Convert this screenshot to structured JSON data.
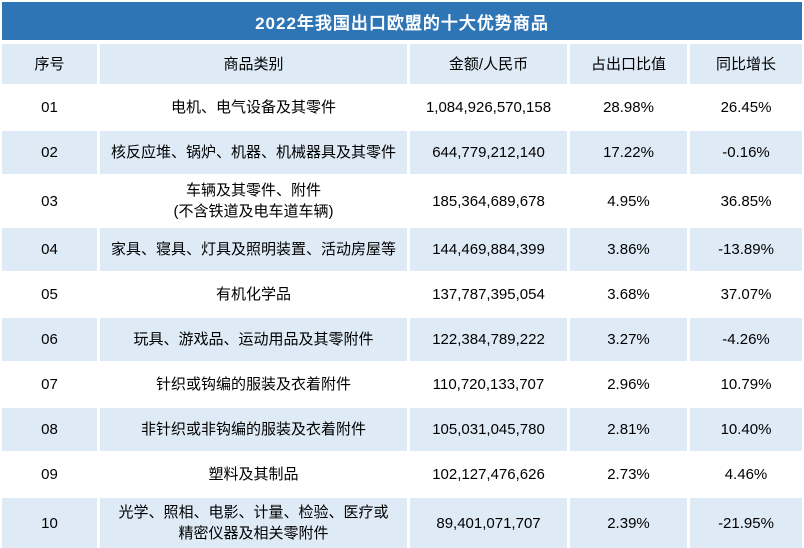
{
  "colors": {
    "title_bar": "#2E75B6",
    "title_text": "#FFFFFF",
    "row_alt": "#DEEAF6",
    "text": "#000000"
  },
  "chart_data": {
    "type": "table",
    "title": "2022年我国出口欧盟的十大优势商品",
    "columns": [
      "序号",
      "商品类别",
      "金额/人民币",
      "占出口比值",
      "同比增长"
    ],
    "rows": [
      {
        "no": "01",
        "category_lines": [
          "电机、电气设备及其零件"
        ],
        "amount": "1,084,926,570,158",
        "share": "28.98%",
        "growth": "26.45%"
      },
      {
        "no": "02",
        "category_lines": [
          "核反应堆、锅炉、机器、机械器具及其零件"
        ],
        "amount": "644,779,212,140",
        "share": "17.22%",
        "growth": "-0.16%"
      },
      {
        "no": "03",
        "category_lines": [
          "车辆及其零件、附件",
          "(不含铁道及电车道车辆)"
        ],
        "amount": "185,364,689,678",
        "share": "4.95%",
        "growth": "36.85%"
      },
      {
        "no": "04",
        "category_lines": [
          "家具、寝具、灯具及照明装置、活动房屋等"
        ],
        "amount": "144,469,884,399",
        "share": "3.86%",
        "growth": "-13.89%"
      },
      {
        "no": "05",
        "category_lines": [
          "有机化学品"
        ],
        "amount": "137,787,395,054",
        "share": "3.68%",
        "growth": "37.07%"
      },
      {
        "no": "06",
        "category_lines": [
          "玩具、游戏品、运动用品及其零附件"
        ],
        "amount": "122,384,789,222",
        "share": "3.27%",
        "growth": "-4.26%"
      },
      {
        "no": "07",
        "category_lines": [
          "针织或钩编的服装及衣着附件"
        ],
        "amount": "110,720,133,707",
        "share": "2.96%",
        "growth": "10.79%"
      },
      {
        "no": "08",
        "category_lines": [
          "非针织或非钩编的服装及衣着附件"
        ],
        "amount": "105,031,045,780",
        "share": "2.81%",
        "growth": "10.40%"
      },
      {
        "no": "09",
        "category_lines": [
          "塑料及其制品"
        ],
        "amount": "102,127,476,626",
        "share": "2.73%",
        "growth": "4.46%"
      },
      {
        "no": "10",
        "category_lines": [
          "光学、照相、电影、计量、检验、医疗或",
          "精密仪器及相关零附件"
        ],
        "amount": "89,401,071,707",
        "share": "2.39%",
        "growth": "-21.95%"
      }
    ]
  }
}
